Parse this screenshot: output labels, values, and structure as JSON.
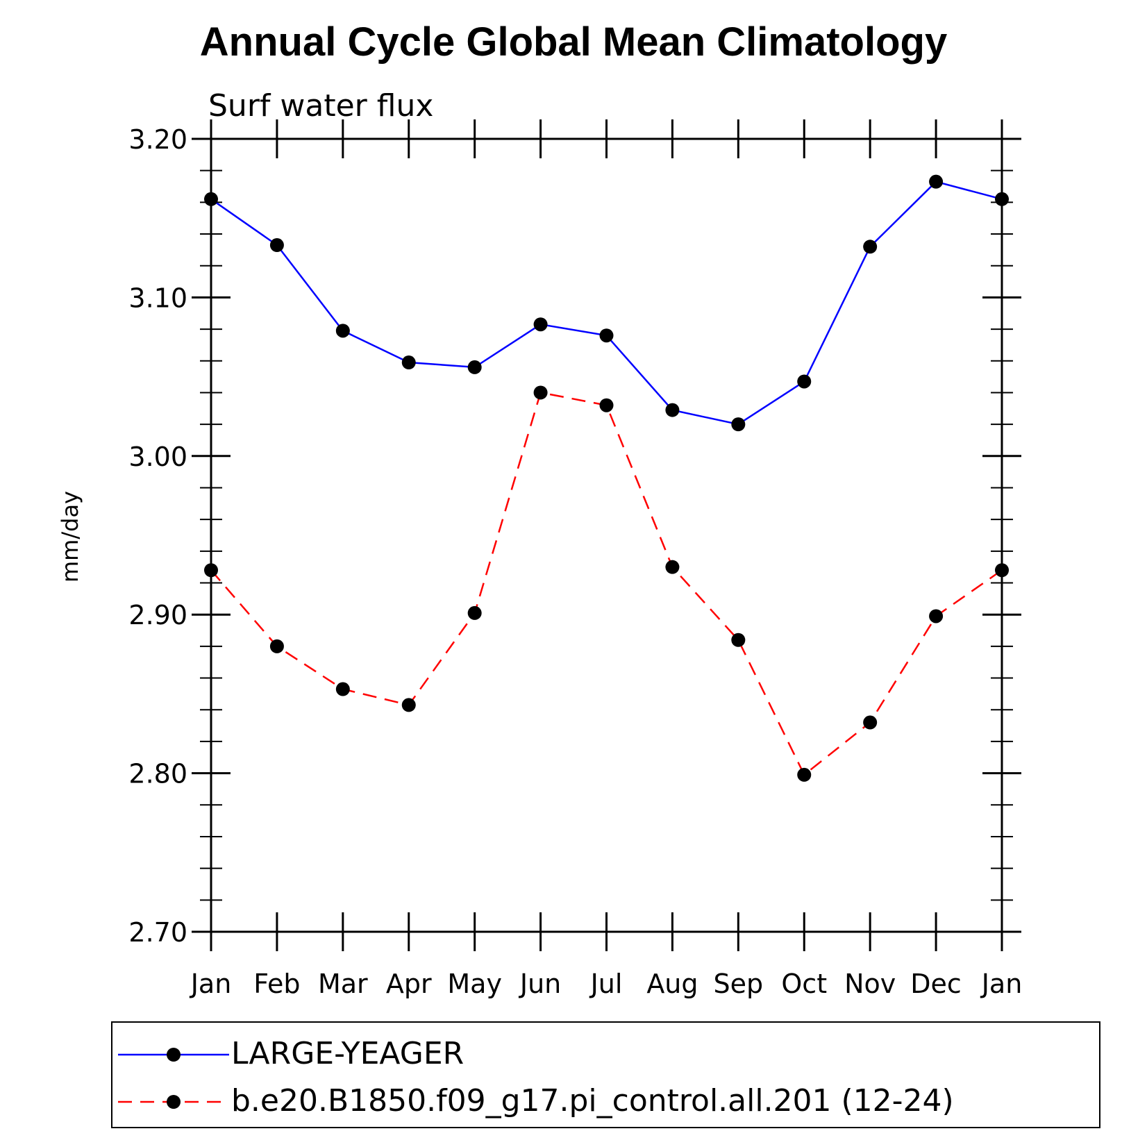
{
  "chart_data": {
    "type": "line",
    "title": "Annual Cycle Global Mean Climatology",
    "subtitle": "Surf water flux",
    "xlabel": "",
    "ylabel": "mm/day",
    "categories": [
      "Jan",
      "Feb",
      "Mar",
      "Apr",
      "May",
      "Jun",
      "Jul",
      "Aug",
      "Sep",
      "Oct",
      "Nov",
      "Dec",
      "Jan"
    ],
    "ylim": [
      2.7,
      3.2
    ],
    "yticks": [
      "2.70",
      "2.80",
      "2.90",
      "3.00",
      "3.10",
      "3.20"
    ],
    "grid": false,
    "legend_position": "bottom",
    "series": [
      {
        "name": "LARGE-YEAGER",
        "color": "#0000ff",
        "line_style": "solid",
        "marker": "filled-circle",
        "values": [
          3.162,
          3.133,
          3.079,
          3.059,
          3.056,
          3.083,
          3.076,
          3.029,
          3.02,
          3.047,
          3.132,
          3.173,
          3.162
        ]
      },
      {
        "name": "b.e20.B1850.f09_g17.pi_control.all.201 (12-24)",
        "color": "#ff0000",
        "line_style": "dashed",
        "marker": "filled-circle",
        "values": [
          2.928,
          2.88,
          2.853,
          2.843,
          2.901,
          3.04,
          3.032,
          2.93,
          2.884,
          2.799,
          2.832,
          2.899,
          2.928
        ]
      }
    ]
  }
}
